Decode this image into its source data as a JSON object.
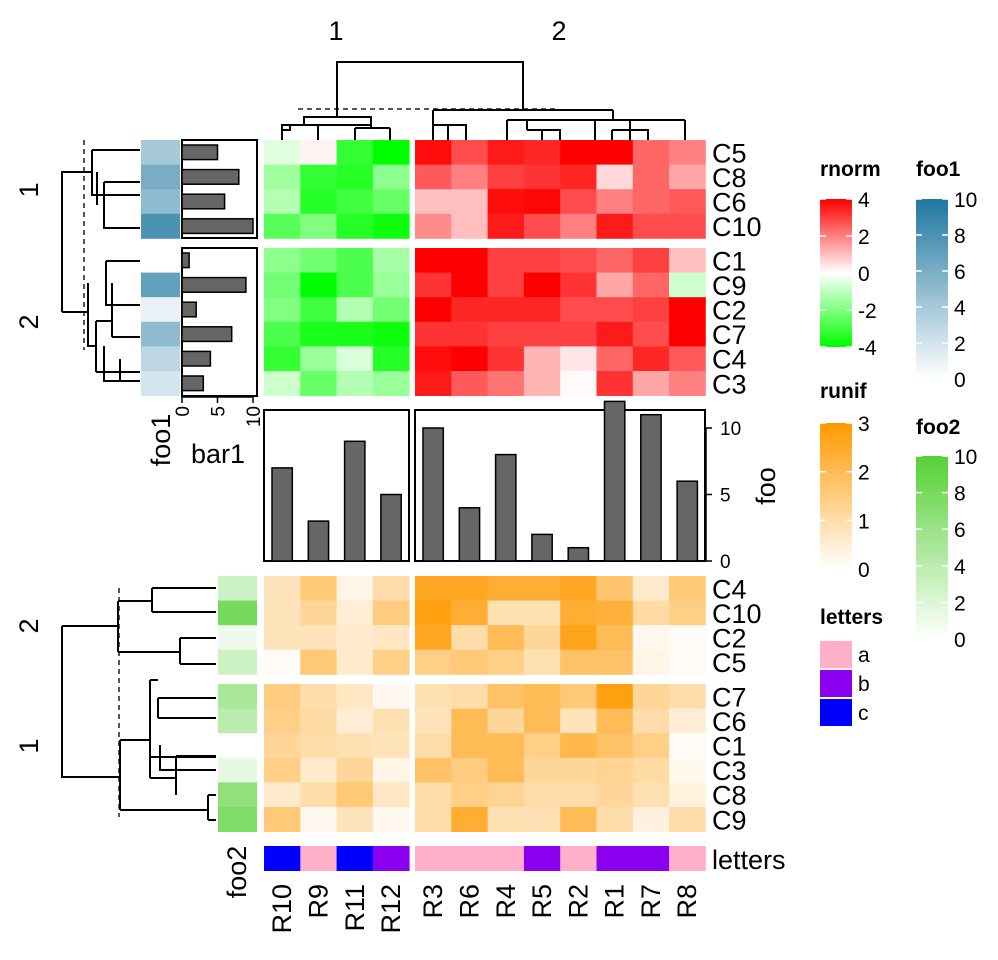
{
  "chart_data": {
    "type": "heatmap",
    "column_split_labels": [
      "1",
      "2"
    ],
    "top_heatmap_row_split_labels": [
      "1",
      "2"
    ],
    "bottom_heatmap_row_split_labels": [
      "2",
      "1"
    ],
    "column_groups": [
      [
        "R10",
        "R9",
        "R11",
        "R12"
      ],
      [
        "R3",
        "R6",
        "R4",
        "R5",
        "R2",
        "R1",
        "R7",
        "R8"
      ]
    ],
    "heatmap_rnorm": {
      "name": "rnorm",
      "color_scale": {
        "breaks": [
          -4,
          0,
          4
        ],
        "colors": [
          "#00ff00",
          "#ffffff",
          "#ff0000"
        ]
      },
      "legend_ticks": [
        "4",
        "2",
        "0",
        "-2",
        "-4"
      ],
      "row_groups": [
        {
          "label": "1",
          "rows": [
            "C5",
            "C8",
            "C6",
            "C10"
          ]
        },
        {
          "label": "2",
          "rows": [
            "C1",
            "C9",
            "C2",
            "C7",
            "C4",
            "C3"
          ]
        }
      ],
      "values": [
        [
          -0.5,
          0.2,
          -3.2,
          -4.0,
          3.8,
          2.8,
          3.6,
          3.4,
          4.0,
          4.0,
          2.4,
          2.0
        ],
        [
          -1.5,
          -3.2,
          -3.4,
          -1.8,
          2.6,
          2.0,
          3.0,
          3.2,
          3.4,
          0.6,
          2.4,
          1.4
        ],
        [
          -1.2,
          -3.4,
          -3.0,
          -2.4,
          1.0,
          1.0,
          3.8,
          3.9,
          2.8,
          2.0,
          2.4,
          2.6
        ],
        [
          -2.6,
          -2.0,
          -3.4,
          -3.8,
          1.8,
          1.0,
          3.6,
          2.8,
          2.0,
          3.6,
          2.8,
          2.8
        ],
        [
          -1.8,
          -2.2,
          -2.8,
          -1.4,
          4.0,
          4.0,
          3.0,
          3.0,
          2.8,
          2.4,
          3.0,
          1.0
        ],
        [
          -2.2,
          -4.0,
          -2.8,
          -1.6,
          3.2,
          4.0,
          3.0,
          4.0,
          3.2,
          1.4,
          2.4,
          -0.8
        ],
        [
          -2.0,
          -3.0,
          -1.2,
          -2.2,
          4.0,
          3.4,
          3.4,
          3.4,
          2.8,
          2.8,
          3.0,
          4.0
        ],
        [
          -2.8,
          -3.6,
          -3.6,
          -3.8,
          3.2,
          3.2,
          3.0,
          3.0,
          3.0,
          3.6,
          2.8,
          4.0
        ],
        [
          -3.2,
          -1.6,
          -0.6,
          -3.4,
          3.8,
          4.0,
          3.2,
          1.2,
          0.4,
          2.4,
          3.4,
          2.6
        ],
        [
          -0.8,
          -2.4,
          -1.2,
          -1.6,
          3.6,
          2.6,
          2.2,
          1.2,
          0.1,
          3.2,
          1.4,
          2.0
        ]
      ]
    },
    "heatmap_runif": {
      "name": "runif",
      "color_scale": {
        "breaks": [
          0,
          3
        ],
        "colors": [
          "#ffffff",
          "#ff9900"
        ]
      },
      "legend_ticks": [
        "3",
        "2",
        "1",
        "0"
      ],
      "row_groups": [
        {
          "label": "2",
          "rows": [
            "C4",
            "C10",
            "C2",
            "C5"
          ]
        },
        {
          "label": "1",
          "rows": [
            "C7",
            "C6",
            "C1",
            "C3",
            "C8",
            "C9"
          ]
        }
      ],
      "values": [
        [
          0.8,
          1.6,
          0.3,
          1.0,
          2.6,
          2.6,
          2.4,
          2.4,
          2.6,
          1.7,
          0.6,
          1.6
        ],
        [
          0.8,
          1.2,
          0.5,
          1.5,
          2.8,
          2.4,
          0.9,
          0.9,
          2.4,
          2.3,
          1.1,
          1.4
        ],
        [
          0.8,
          0.8,
          0.6,
          0.7,
          2.6,
          1.0,
          2.0,
          1.2,
          2.7,
          2.0,
          0.2,
          0.1
        ],
        [
          0.1,
          1.6,
          0.6,
          1.4,
          1.4,
          1.6,
          1.4,
          0.9,
          1.8,
          1.8,
          0.3,
          0.1
        ],
        [
          1.5,
          1.0,
          0.7,
          0.2,
          0.9,
          1.0,
          1.8,
          2.0,
          1.6,
          2.8,
          1.2,
          1.0
        ],
        [
          1.4,
          1.1,
          0.5,
          0.9,
          0.8,
          2.0,
          1.2,
          2.0,
          0.8,
          2.0,
          1.0,
          0.5
        ],
        [
          1.2,
          1.0,
          0.9,
          0.8,
          1.0,
          2.0,
          2.0,
          1.4,
          2.1,
          1.8,
          1.4,
          0.1
        ],
        [
          1.4,
          0.6,
          1.2,
          0.3,
          1.8,
          1.5,
          2.0,
          1.2,
          1.2,
          1.3,
          1.1,
          0.2
        ],
        [
          0.6,
          1.0,
          1.6,
          0.7,
          1.0,
          1.4,
          1.3,
          1.0,
          1.0,
          1.2,
          0.9,
          0.4
        ],
        [
          1.6,
          0.2,
          0.8,
          0.2,
          1.0,
          2.4,
          0.9,
          0.9,
          2.0,
          1.0,
          0.4,
          1.0
        ]
      ]
    },
    "row_annotation_foo1": {
      "name": "foo1",
      "color_scale": {
        "breaks": [
          0,
          10
        ],
        "colors": [
          "#ffffff",
          "#1f77a0"
        ]
      },
      "legend_ticks": [
        "10",
        "8",
        "6",
        "4",
        "2",
        "0"
      ],
      "values": [
        4,
        6,
        5,
        8,
        0,
        7,
        1,
        5,
        3,
        2
      ]
    },
    "row_annotation_bar1": {
      "name": "bar1",
      "ticks": [
        "0",
        "5",
        "10"
      ],
      "values": [
        5,
        8,
        6,
        10,
        1,
        9,
        2,
        7,
        4,
        3
      ]
    },
    "row_annotation_foo2": {
      "name": "foo2",
      "color_scale": {
        "breaks": [
          0,
          10
        ],
        "colors": [
          "#ffffff",
          "#55d035"
        ]
      },
      "legend_ticks": [
        "10",
        "8",
        "6",
        "4",
        "2",
        "0"
      ],
      "values": [
        3,
        8,
        1,
        3,
        5,
        4,
        0,
        1.5,
        6.5,
        7.5
      ]
    },
    "column_annotation_foo": {
      "name": "foo",
      "ticks": [
        "10",
        "5",
        "0"
      ],
      "values": [
        7,
        3,
        9,
        5,
        10,
        4,
        8,
        2,
        1,
        12,
        11,
        6
      ]
    },
    "column_annotation_letters": {
      "name": "letters",
      "values": [
        "c",
        "a",
        "c",
        "b",
        "a",
        "a",
        "a",
        "b",
        "a",
        "b",
        "b",
        "a"
      ],
      "legend": [
        {
          "label": "a",
          "color": "#ffb0c8"
        },
        {
          "label": "b",
          "color": "#8b00ee"
        },
        {
          "label": "c",
          "color": "#0000ff"
        }
      ]
    }
  }
}
